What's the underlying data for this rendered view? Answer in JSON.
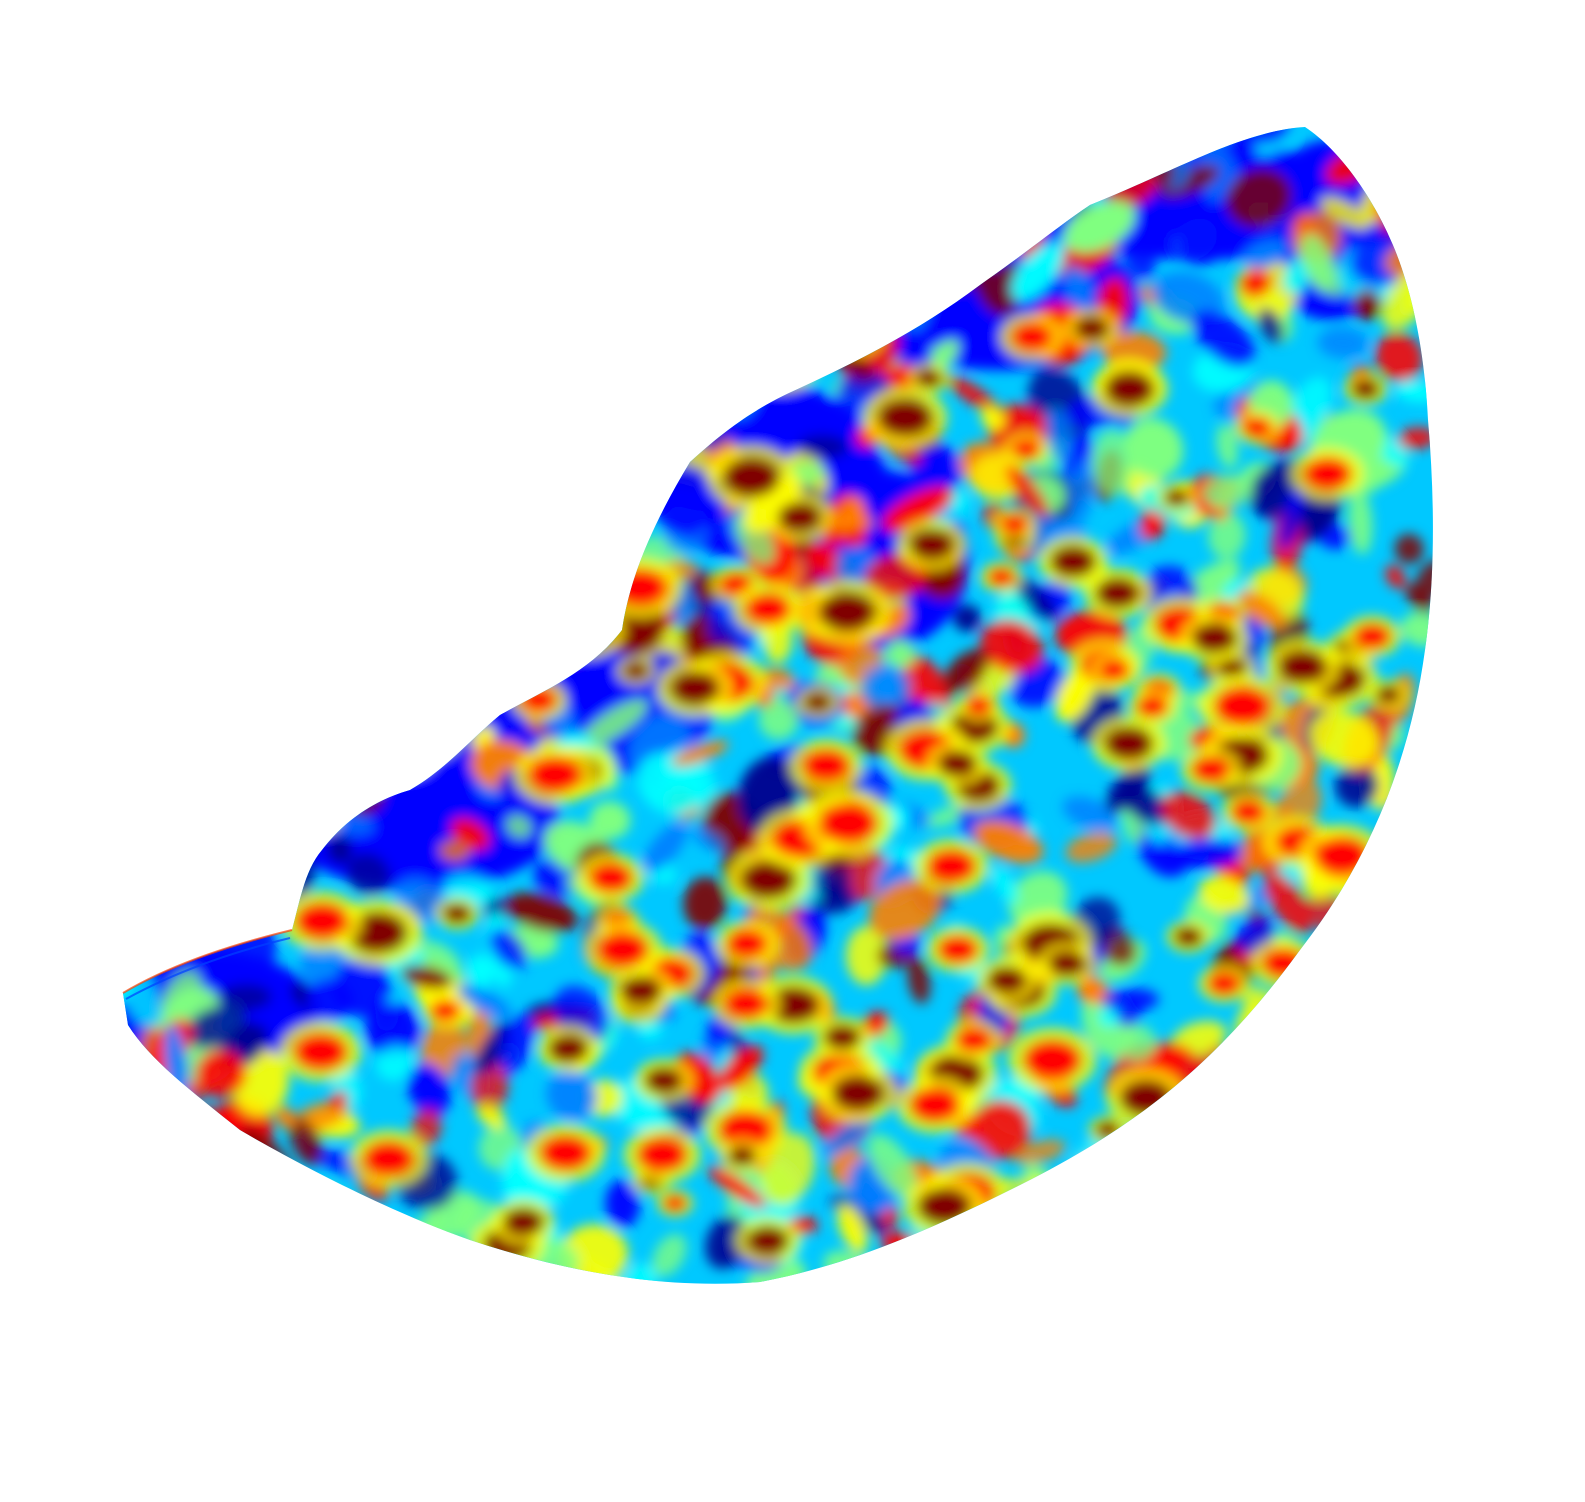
{
  "figure": {
    "kind": "colored surface map (heat-style scalar field on a curved leaf-shaped patch)",
    "colormap": {
      "name": "jet",
      "stops": [
        "#00008f",
        "#0000ff",
        "#0080ff",
        "#00ffff",
        "#80ff80",
        "#ffff00",
        "#ff8000",
        "#ff0000",
        "#800000"
      ]
    },
    "background_color": "#ffffff",
    "seed": 1337
  }
}
